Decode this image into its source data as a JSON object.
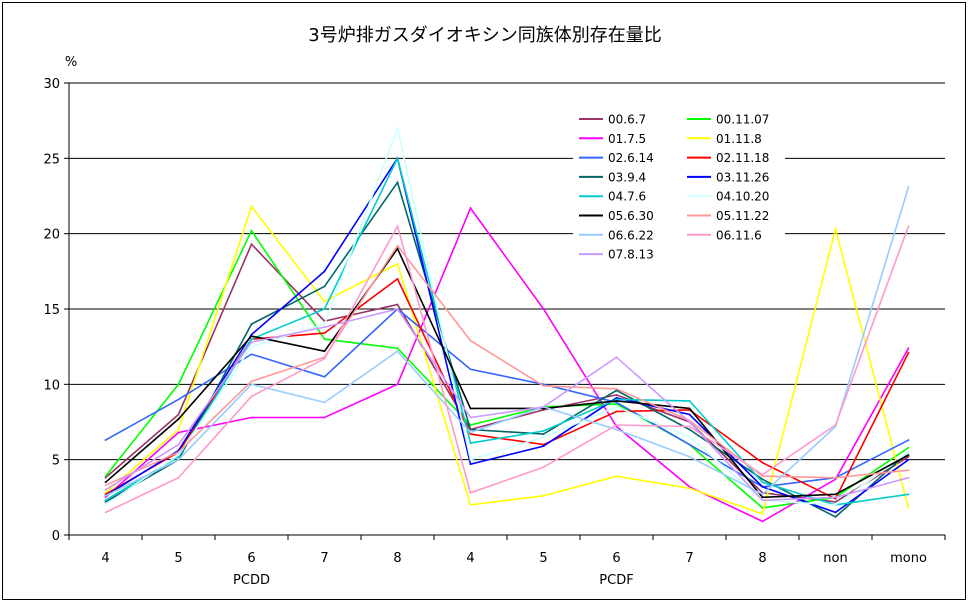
{
  "chart_data": {
    "type": "line",
    "title": "3号炉排ガスダイオキシン同族体別存在量比",
    "ylabel": "%",
    "ylim": [
      0,
      30
    ],
    "yticks": [
      0,
      5,
      10,
      15,
      20,
      25,
      30
    ],
    "grid": true,
    "legend_position": "top-right",
    "categories": [
      "4",
      "5",
      "6",
      "7",
      "8",
      "4",
      "5",
      "6",
      "7",
      "8",
      "non",
      "mono"
    ],
    "groups": [
      {
        "label": "PCDD",
        "from": 0,
        "to": 4
      },
      {
        "label": "PCDF",
        "from": 5,
        "to": 9
      }
    ],
    "series": [
      {
        "name": "00.6.7",
        "color": "#993366",
        "values": [
          3.8,
          8.0,
          19.3,
          14.2,
          15.3,
          7.0,
          8.3,
          9.3,
          7.5,
          2.8,
          2.2,
          5.2
        ]
      },
      {
        "name": "00.11.07",
        "color": "#00ff00",
        "values": [
          3.9,
          10.0,
          20.2,
          13.0,
          12.4,
          7.3,
          8.5,
          8.7,
          6.0,
          1.8,
          2.5,
          5.8
        ]
      },
      {
        "name": "01.7.5",
        "color": "#ff00ff",
        "values": [
          2.5,
          6.8,
          7.8,
          7.8,
          10.0,
          21.7,
          15.0,
          7.2,
          3.2,
          0.9,
          3.7,
          12.4
        ]
      },
      {
        "name": "01.11.8",
        "color": "#ffff00",
        "values": [
          2.8,
          7.0,
          21.8,
          15.5,
          18.0,
          2.0,
          2.6,
          3.9,
          3.1,
          1.4,
          20.3,
          1.8
        ]
      },
      {
        "name": "02.6.14",
        "color": "#3366ff",
        "values": [
          6.3,
          9.0,
          12.0,
          10.5,
          15.0,
          11.0,
          10.0,
          8.8,
          6.0,
          3.2,
          3.8,
          6.3
        ]
      },
      {
        "name": "02.11.18",
        "color": "#ff0000",
        "values": [
          2.7,
          5.5,
          13.0,
          13.4,
          17.0,
          6.7,
          6.0,
          8.2,
          8.3,
          4.8,
          2.4,
          12.1
        ]
      },
      {
        "name": "03.9.4",
        "color": "#006666",
        "values": [
          2.2,
          5.0,
          14.0,
          16.5,
          23.4,
          7.0,
          6.7,
          9.6,
          7.0,
          3.7,
          1.2,
          5.5
        ]
      },
      {
        "name": "03.11.26",
        "color": "#0000ff",
        "values": [
          2.6,
          5.6,
          13.3,
          17.5,
          25.0,
          4.7,
          5.9,
          9.1,
          8.0,
          3.2,
          1.5,
          5.0
        ]
      },
      {
        "name": "04.7.6",
        "color": "#00cccc",
        "values": [
          2.3,
          5.2,
          13.0,
          15.0,
          25.0,
          6.1,
          6.9,
          9.0,
          8.9,
          3.5,
          2.0,
          2.7
        ]
      },
      {
        "name": "04.10.20",
        "color": "#ccffff",
        "values": [
          2.0,
          5.3,
          12.5,
          14.0,
          27.0,
          5.0,
          6.5,
          8.5,
          6.5,
          2.3,
          2.0,
          5.5
        ]
      },
      {
        "name": "05.6.30",
        "color": "#000000",
        "values": [
          3.5,
          7.7,
          13.2,
          12.2,
          19.0,
          8.4,
          8.4,
          8.9,
          8.4,
          2.5,
          2.7,
          5.3
        ]
      },
      {
        "name": "05.11.22",
        "color": "#ff9999",
        "values": [
          3.3,
          5.5,
          10.2,
          11.8,
          19.2,
          12.9,
          9.9,
          9.7,
          7.6,
          3.9,
          3.8,
          4.3
        ]
      },
      {
        "name": "06.6.22",
        "color": "#99ccff",
        "values": [
          2.6,
          5.0,
          10.0,
          8.8,
          12.2,
          6.8,
          8.5,
          7.0,
          5.2,
          2.7,
          7.2,
          23.1
        ]
      },
      {
        "name": "06.11.6",
        "color": "#ff99cc",
        "values": [
          1.5,
          3.8,
          9.2,
          11.7,
          20.5,
          2.8,
          4.5,
          7.3,
          7.2,
          4.0,
          7.3,
          20.5
        ]
      },
      {
        "name": "07.8.13",
        "color": "#cc99ff",
        "values": [
          3.0,
          6.0,
          12.8,
          13.8,
          15.0,
          7.8,
          8.5,
          11.8,
          7.5,
          2.3,
          2.5,
          3.8
        ]
      }
    ]
  }
}
